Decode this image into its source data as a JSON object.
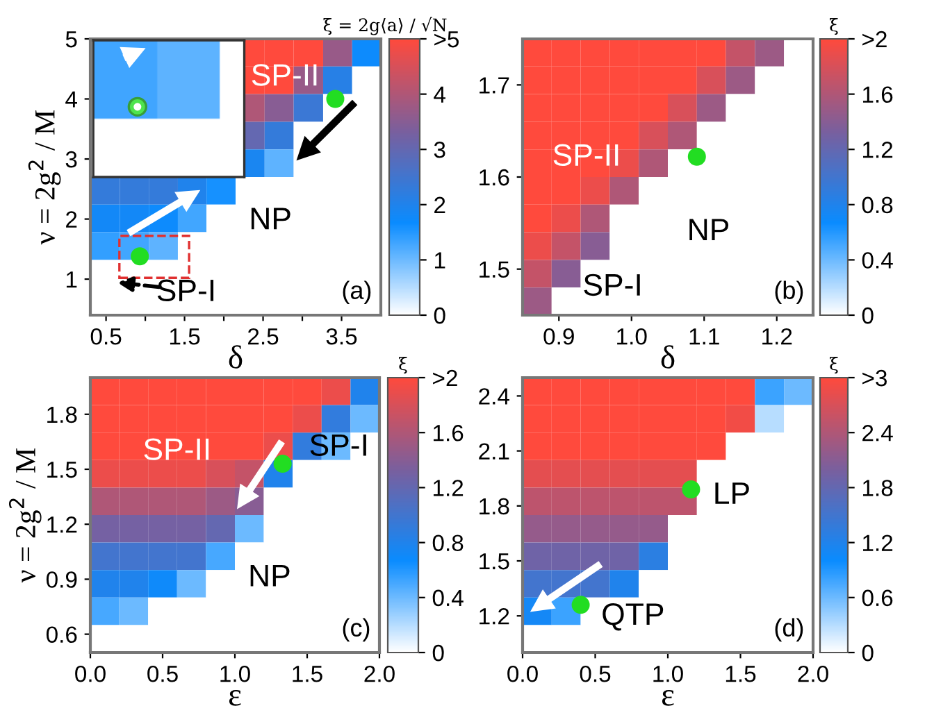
{
  "chart_data": [
    {
      "type": "heatmap",
      "xlabel": "δ",
      "ylabel": "ν = 2g$^{2}$ / M",
      "clabel": "ξ = 2g⟨a⟩ / √N",
      "xlim": [
        0.3,
        4.0
      ],
      "ylim": [
        0.4,
        5.0
      ],
      "xticks": [
        0.5,
        {
          "value": 1,
          "label": null
        },
        1.5,
        {
          "value": 2,
          "label": null
        },
        2.5,
        {
          "value": 3,
          "label": null
        },
        3.5
      ],
      "yticks": [
        1,
        2,
        3,
        4,
        5
      ],
      "clim": [
        0,
        5
      ],
      "cticks": [
        0,
        1,
        2,
        3,
        4,
        {
          "value": 5,
          "label": ">5"
        }
      ],
      "colors": [
        "#ffffff",
        "#0a8cff",
        "#7a5f9e",
        "#ff4a3d"
      ],
      "x": [
        0.49,
        0.86,
        1.23,
        1.6,
        1.96,
        2.34,
        2.7,
        3.08,
        3.45,
        3.82
      ],
      "y": [
        4.77,
        4.31,
        3.85,
        3.39,
        2.93,
        2.47,
        2.01,
        1.55,
        1.09,
        0.63
      ],
      "cells": [
        [
          null,
          null,
          null,
          null,
          null,
          5,
          5,
          5,
          3.7,
          1.7
        ],
        [
          null,
          null,
          null,
          null,
          null,
          5,
          5,
          3.7,
          2.1,
          0
        ],
        [
          null,
          null,
          null,
          null,
          null,
          4.0,
          3.5,
          2.4,
          0,
          0
        ],
        [
          null,
          null,
          null,
          null,
          null,
          3.0,
          2.3,
          0,
          0,
          0
        ],
        [
          null,
          null,
          null,
          null,
          null,
          1.9,
          1.1,
          0,
          0,
          0
        ],
        [
          2.3,
          2.3,
          2.3,
          2.0,
          1.6,
          0,
          0,
          0,
          0,
          0
        ],
        [
          1.8,
          1.8,
          1.7,
          1.3,
          0,
          0,
          0,
          0,
          0,
          0
        ],
        [
          1.4,
          1.3,
          1.1,
          0,
          0,
          0,
          0,
          0,
          0,
          0
        ],
        [
          0,
          0,
          0,
          0,
          0,
          0,
          0,
          0,
          0,
          0
        ],
        [
          0,
          0,
          0,
          0,
          0,
          0,
          0,
          0,
          0,
          0
        ]
      ],
      "series": [
        {
          "type": "scatter",
          "x": [
            0.93,
            3.42
          ],
          "values": [
            1.38,
            4.0
          ],
          "color": "#22dd22"
        }
      ],
      "annotations": [
        "SP-II",
        "NP",
        "SP-I",
        "(a)"
      ]
    },
    {
      "type": "heatmap",
      "xlabel": "δ",
      "clabel": "ξ",
      "xlim": [
        0.85,
        1.25
      ],
      "ylim": [
        1.45,
        1.75
      ],
      "xticks": [
        0.9,
        {
          "value": 1,
          "label": "1.0"
        },
        1.1,
        1.2
      ],
      "yticks": [
        1.5,
        1.6,
        1.7
      ],
      "clim": [
        0,
        2
      ],
      "cticks": [
        0,
        0.4,
        0.8,
        1.2,
        1.6,
        {
          "value": 2,
          "label": ">2"
        }
      ],
      "colors": [
        "#ffffff",
        "#0a8cff",
        "#7a5f9e",
        "#ff4a3d"
      ],
      "x": [
        0.87,
        0.91,
        0.95,
        0.99,
        1.03,
        1.07,
        1.11,
        1.15,
        1.19,
        1.23
      ],
      "y": [
        1.735,
        1.705,
        1.675,
        1.645,
        1.615,
        1.585,
        1.555,
        1.525,
        1.495,
        1.465
      ],
      "cells": [
        [
          2,
          2,
          2,
          2,
          2,
          2,
          2,
          1.7,
          1.5,
          0
        ],
        [
          2,
          2,
          2,
          2,
          2,
          2,
          1.8,
          1.5,
          0,
          0
        ],
        [
          2,
          2,
          2,
          2,
          2,
          1.8,
          1.5,
          0,
          0,
          0
        ],
        [
          2,
          2,
          2,
          2,
          1.8,
          1.6,
          0,
          0,
          0,
          0
        ],
        [
          2,
          2,
          2,
          1.9,
          1.6,
          0,
          0,
          0,
          0,
          0
        ],
        [
          2,
          2,
          1.9,
          1.6,
          0,
          0,
          0,
          0,
          0,
          0
        ],
        [
          2,
          1.9,
          1.6,
          0,
          0,
          0,
          0,
          0,
          0,
          0
        ],
        [
          1.9,
          1.7,
          1.4,
          0,
          0,
          0,
          0,
          0,
          0,
          0
        ],
        [
          1.7,
          1.4,
          0,
          0,
          0,
          0,
          0,
          0,
          0,
          0
        ],
        [
          1.5,
          0,
          0,
          0,
          0,
          0,
          0,
          0,
          0,
          0
        ]
      ],
      "series": [
        {
          "type": "scatter",
          "x": [
            1.09
          ],
          "values": [
            1.622
          ],
          "color": "#22dd22"
        }
      ],
      "annotations": [
        "SP-II",
        "SP-I",
        "NP",
        "(b)"
      ]
    },
    {
      "type": "heatmap",
      "xlabel": "ε",
      "ylabel": "ν = 2g$^{2}$ / M",
      "clabel": "ξ",
      "xlim": [
        0,
        2
      ],
      "ylim": [
        0.5,
        2.0
      ],
      "xticks": [
        {
          "value": 0,
          "label": "0.0"
        },
        0.5,
        {
          "value": 1,
          "label": "1.0"
        },
        1.5,
        {
          "value": 2,
          "label": "2.0"
        }
      ],
      "yticks": [
        0.6,
        0.9,
        1.2,
        1.5,
        1.8
      ],
      "clim": [
        0,
        2
      ],
      "cticks": [
        0,
        0.4,
        0.8,
        1.2,
        1.6,
        {
          "value": 2,
          "label": ">2"
        }
      ],
      "colors": [
        "#ffffff",
        "#0a8cff",
        "#7a5f9e",
        "#ff4a3d"
      ],
      "x": [
        0.1,
        0.3,
        0.5,
        0.7,
        0.9,
        1.1,
        1.3,
        1.5,
        1.7,
        1.9
      ],
      "y": [
        1.925,
        1.775,
        1.625,
        1.475,
        1.325,
        1.175,
        1.025,
        0.875,
        0.725,
        0.575
      ],
      "cells": [
        [
          2,
          2,
          2,
          2,
          2,
          2,
          2,
          2,
          1.9,
          0.8
        ],
        [
          2,
          2,
          2,
          2,
          2,
          2,
          2,
          1.9,
          0.9,
          0.4
        ],
        [
          2,
          2,
          2,
          2,
          2,
          2,
          1.9,
          0.9,
          0.4,
          0
        ],
        [
          1.9,
          1.9,
          1.9,
          1.9,
          1.8,
          1.7,
          0.8,
          0,
          0,
          0
        ],
        [
          1.6,
          1.6,
          1.6,
          1.6,
          1.5,
          1.4,
          0,
          0,
          0,
          0
        ],
        [
          1.3,
          1.3,
          1.3,
          1.3,
          1.2,
          0.4,
          0,
          0,
          0,
          0
        ],
        [
          1.0,
          1.0,
          1.0,
          1.0,
          0.5,
          0,
          0,
          0,
          0,
          0
        ],
        [
          0.8,
          0.8,
          0.7,
          0.4,
          0,
          0,
          0,
          0,
          0,
          0
        ],
        [
          0.5,
          0.4,
          0,
          0,
          0,
          0,
          0,
          0,
          0,
          0
        ],
        [
          0,
          0,
          0,
          0,
          0,
          0,
          0,
          0,
          0,
          0
        ]
      ],
      "series": [
        {
          "type": "scatter",
          "x": [
            1.33
          ],
          "values": [
            1.53
          ],
          "color": "#22dd22"
        }
      ],
      "annotations": [
        "SP-II",
        "SP-I",
        "NP",
        "(c)"
      ]
    },
    {
      "type": "heatmap",
      "xlabel": "ε",
      "clabel": "ξ",
      "xlim": [
        0,
        2
      ],
      "ylim": [
        1.0,
        2.5
      ],
      "xticks": [
        {
          "value": 0,
          "label": "0.0"
        },
        0.5,
        {
          "value": 1,
          "label": "1.0"
        },
        1.5,
        {
          "value": 2,
          "label": "2.0"
        }
      ],
      "yticks": [
        1.2,
        1.5,
        1.8,
        2.1,
        2.4
      ],
      "clim": [
        0,
        3
      ],
      "cticks": [
        0,
        0.6,
        1.2,
        1.8,
        2.4,
        {
          "value": 3,
          "label": ">3"
        }
      ],
      "colors": [
        "#ffffff",
        "#0a8cff",
        "#7a5f9e",
        "#ff4a3d"
      ],
      "x": [
        0.1,
        0.3,
        0.5,
        0.7,
        0.9,
        1.1,
        1.3,
        1.5,
        1.7,
        1.9
      ],
      "y": [
        2.425,
        2.275,
        2.125,
        1.975,
        1.825,
        1.675,
        1.525,
        1.375,
        1.225,
        1.075
      ],
      "cells": [
        [
          3,
          3,
          3,
          3,
          3,
          3,
          3,
          3,
          0.8,
          0.6
        ],
        [
          3,
          3,
          3,
          3,
          3,
          3,
          3,
          2.9,
          0.3,
          0
        ],
        [
          3,
          3,
          3,
          3,
          3,
          3,
          3,
          0,
          0,
          0
        ],
        [
          2.8,
          2.8,
          2.8,
          2.8,
          2.8,
          2.8,
          0,
          0,
          0,
          0
        ],
        [
          2.5,
          2.5,
          2.5,
          2.5,
          2.5,
          2.5,
          0,
          0,
          0,
          0
        ],
        [
          2.2,
          2.2,
          2.2,
          2.2,
          2.2,
          0,
          0,
          0,
          0,
          0
        ],
        [
          1.9,
          1.9,
          1.9,
          1.9,
          1.3,
          0,
          0,
          0,
          0,
          0
        ],
        [
          1.5,
          1.5,
          1.5,
          1.2,
          0,
          0,
          0,
          0,
          0,
          0
        ],
        [
          1.1,
          0.8,
          0,
          0,
          0,
          0,
          0,
          0,
          0,
          0
        ],
        [
          0,
          0,
          0,
          0,
          0,
          0,
          0,
          0,
          0,
          0
        ]
      ],
      "series": [
        {
          "type": "scatter",
          "x": [
            0.4,
            1.16
          ],
          "values": [
            1.26,
            1.89
          ],
          "color": "#22dd22"
        }
      ],
      "annotations": [
        "LP",
        "QTP",
        "(d)"
      ]
    }
  ]
}
